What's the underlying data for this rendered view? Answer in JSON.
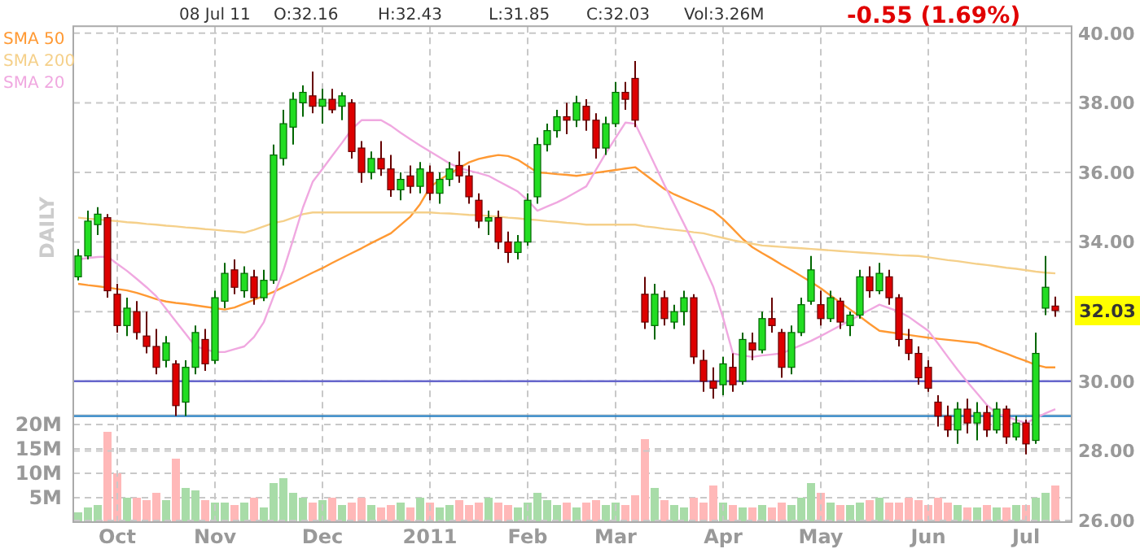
{
  "chart_data": [
    {
      "type": "candlestick",
      "ylabel": "DAILY",
      "legend": "top left",
      "grid": true,
      "categories": [
        null,
        null,
        null,
        null,
        "Oct",
        null,
        null,
        null,
        null,
        null,
        null,
        null,
        null,
        null,
        "Nov",
        null,
        null,
        null,
        null,
        null,
        null,
        null,
        null,
        null,
        null,
        "Dec",
        null,
        null,
        null,
        null,
        null,
        null,
        null,
        null,
        null,
        null,
        "2011",
        null,
        null,
        null,
        null,
        null,
        null,
        null,
        null,
        null,
        "Feb",
        null,
        null,
        null,
        null,
        null,
        null,
        null,
        null,
        "Mar",
        null,
        null,
        null,
        null,
        null,
        null,
        null,
        null,
        null,
        null,
        "Apr",
        null,
        null,
        null,
        null,
        null,
        null,
        null,
        null,
        null,
        "May",
        null,
        null,
        null,
        null,
        null,
        null,
        null,
        null,
        null,
        null,
        "Jun",
        null,
        null,
        null,
        null,
        null,
        null,
        null,
        null,
        null,
        "Jul",
        null,
        null,
        null
      ],
      "ohlc": [
        [
          33.0,
          33.8,
          32.9,
          33.6
        ],
        [
          33.6,
          34.9,
          33.5,
          34.6
        ],
        [
          34.5,
          35.0,
          34.2,
          34.8
        ],
        [
          34.7,
          34.8,
          32.4,
          32.6
        ],
        [
          32.5,
          32.8,
          31.4,
          31.6
        ],
        [
          31.6,
          32.4,
          31.3,
          32.1
        ],
        [
          32.0,
          32.3,
          31.2,
          31.4
        ],
        [
          31.3,
          32.0,
          30.8,
          31.0
        ],
        [
          31.0,
          31.5,
          30.2,
          30.4
        ],
        [
          30.6,
          31.3,
          30.4,
          31.1
        ],
        [
          30.5,
          30.6,
          29.0,
          29.3
        ],
        [
          29.4,
          30.6,
          29.0,
          30.4
        ],
        [
          30.4,
          31.6,
          30.2,
          31.4
        ],
        [
          31.2,
          31.5,
          30.3,
          30.5
        ],
        [
          30.6,
          32.6,
          30.5,
          32.4
        ],
        [
          32.3,
          33.4,
          32.1,
          33.1
        ],
        [
          33.2,
          33.5,
          32.5,
          32.7
        ],
        [
          32.6,
          33.3,
          32.4,
          33.1
        ],
        [
          33.0,
          33.2,
          32.2,
          32.4
        ],
        [
          32.4,
          33.2,
          32.3,
          32.9
        ],
        [
          32.9,
          36.8,
          32.8,
          36.5
        ],
        [
          36.4,
          37.8,
          36.2,
          37.4
        ],
        [
          37.3,
          38.3,
          36.8,
          38.1
        ],
        [
          38.0,
          38.5,
          37.6,
          38.3
        ],
        [
          38.2,
          38.9,
          37.7,
          37.9
        ],
        [
          37.9,
          38.4,
          37.4,
          38.1
        ],
        [
          38.1,
          38.4,
          37.7,
          37.8
        ],
        [
          37.9,
          38.3,
          37.5,
          38.2
        ],
        [
          38.0,
          38.1,
          36.4,
          36.6
        ],
        [
          36.7,
          36.9,
          35.7,
          36.0
        ],
        [
          36.0,
          36.6,
          35.8,
          36.4
        ],
        [
          36.4,
          36.9,
          35.9,
          36.1
        ],
        [
          36.1,
          36.5,
          35.3,
          35.5
        ],
        [
          35.5,
          36.0,
          35.2,
          35.8
        ],
        [
          35.9,
          36.2,
          35.4,
          35.6
        ],
        [
          35.6,
          36.3,
          35.4,
          36.1
        ],
        [
          36.0,
          36.2,
          35.2,
          35.4
        ],
        [
          35.4,
          36.0,
          35.1,
          35.8
        ],
        [
          35.8,
          36.3,
          35.6,
          36.1
        ],
        [
          36.2,
          36.6,
          35.7,
          35.9
        ],
        [
          35.9,
          36.2,
          35.1,
          35.3
        ],
        [
          35.2,
          35.4,
          34.4,
          34.6
        ],
        [
          34.6,
          34.9,
          34.2,
          34.7
        ],
        [
          34.7,
          34.9,
          33.8,
          34.0
        ],
        [
          34.0,
          34.3,
          33.4,
          33.7
        ],
        [
          33.7,
          34.2,
          33.5,
          34.0
        ],
        [
          34.0,
          35.4,
          33.9,
          35.2
        ],
        [
          35.3,
          37.0,
          35.1,
          36.8
        ],
        [
          36.8,
          37.4,
          36.6,
          37.2
        ],
        [
          37.2,
          37.8,
          37.0,
          37.6
        ],
        [
          37.6,
          38.0,
          37.1,
          37.5
        ],
        [
          37.5,
          38.2,
          37.3,
          38.0
        ],
        [
          37.9,
          38.1,
          37.2,
          37.5
        ],
        [
          37.5,
          37.7,
          36.4,
          36.7
        ],
        [
          36.7,
          37.6,
          36.5,
          37.4
        ],
        [
          37.4,
          38.6,
          37.3,
          38.3
        ],
        [
          38.3,
          38.6,
          37.8,
          38.1
        ],
        [
          38.7,
          39.2,
          37.3,
          37.5
        ],
        [
          32.5,
          33.0,
          31.5,
          31.7
        ],
        [
          31.6,
          32.8,
          31.2,
          32.5
        ],
        [
          32.4,
          32.6,
          31.6,
          31.8
        ],
        [
          31.7,
          32.2,
          31.5,
          32.0
        ],
        [
          32.0,
          32.6,
          31.6,
          32.4
        ],
        [
          32.4,
          32.5,
          30.5,
          30.7
        ],
        [
          30.6,
          30.9,
          29.7,
          30.0
        ],
        [
          30.0,
          30.4,
          29.5,
          29.8
        ],
        [
          29.9,
          30.7,
          29.6,
          30.5
        ],
        [
          30.4,
          30.8,
          29.7,
          29.9
        ],
        [
          30.0,
          31.4,
          29.9,
          31.2
        ],
        [
          31.1,
          31.4,
          30.6,
          30.9
        ],
        [
          30.9,
          32.0,
          30.8,
          31.8
        ],
        [
          31.8,
          32.4,
          31.4,
          31.6
        ],
        [
          31.4,
          31.5,
          30.1,
          30.4
        ],
        [
          30.4,
          31.6,
          30.2,
          31.4
        ],
        [
          31.4,
          32.4,
          31.3,
          32.2
        ],
        [
          32.3,
          33.6,
          32.2,
          33.2
        ],
        [
          32.2,
          32.6,
          31.6,
          31.8
        ],
        [
          31.8,
          32.6,
          31.7,
          32.4
        ],
        [
          32.3,
          32.4,
          31.5,
          31.7
        ],
        [
          31.6,
          32.0,
          31.3,
          31.9
        ],
        [
          31.9,
          33.2,
          31.8,
          33.0
        ],
        [
          33.0,
          33.3,
          32.4,
          32.6
        ],
        [
          32.6,
          33.4,
          32.5,
          33.1
        ],
        [
          33.0,
          33.2,
          32.2,
          32.4
        ],
        [
          32.4,
          32.5,
          31.0,
          31.2
        ],
        [
          31.2,
          31.5,
          30.6,
          30.8
        ],
        [
          30.8,
          31.0,
          29.9,
          30.1
        ],
        [
          30.4,
          30.6,
          29.7,
          29.8
        ],
        [
          29.4,
          29.6,
          28.7,
          29.0
        ],
        [
          29.0,
          29.3,
          28.4,
          28.6
        ],
        [
          28.6,
          29.4,
          28.2,
          29.2
        ],
        [
          29.2,
          29.5,
          28.5,
          28.8
        ],
        [
          28.8,
          29.4,
          28.3,
          29.1
        ],
        [
          29.1,
          29.3,
          28.4,
          28.6
        ],
        [
          28.6,
          29.4,
          28.5,
          29.2
        ],
        [
          29.2,
          29.3,
          28.2,
          28.4
        ],
        [
          28.4,
          29.0,
          28.3,
          28.8
        ],
        [
          28.8,
          28.9,
          27.9,
          28.2
        ],
        [
          28.3,
          31.4,
          28.2,
          30.8
        ],
        [
          32.1,
          33.6,
          31.9,
          32.7
        ],
        [
          32.16,
          32.43,
          31.85,
          32.03
        ]
      ],
      "series": [
        {
          "type": "line",
          "name": "SMA 50",
          "color": "#ff9933",
          "values": [
            32.8,
            32.76,
            32.73,
            32.69,
            32.65,
            32.61,
            32.54,
            32.45,
            32.36,
            32.29,
            32.25,
            32.22,
            32.18,
            32.14,
            32.1,
            32.06,
            32.12,
            32.23,
            32.34,
            32.45,
            32.57,
            32.71,
            32.84,
            32.98,
            33.12,
            33.25,
            33.4,
            33.54,
            33.68,
            33.82,
            33.97,
            34.11,
            34.25,
            34.49,
            34.73,
            35.09,
            35.57,
            35.79,
            35.96,
            36.13,
            36.29,
            36.39,
            36.45,
            36.5,
            36.47,
            36.36,
            36.18,
            36.0,
            35.98,
            35.95,
            35.93,
            35.9,
            35.94,
            35.99,
            36.03,
            36.07,
            36.11,
            36.15,
            35.94,
            35.73,
            35.52,
            35.37,
            35.25,
            35.13,
            35.01,
            34.89,
            34.66,
            34.38,
            34.09,
            33.85,
            33.68,
            33.52,
            33.35,
            33.19,
            33.02,
            32.85,
            32.67,
            32.46,
            32.26,
            32.06,
            31.86,
            31.65,
            31.45,
            31.41,
            31.37,
            31.33,
            31.29,
            31.25,
            31.22,
            31.19,
            31.16,
            31.13,
            31.1,
            31.0,
            30.89,
            30.79,
            30.68,
            30.58,
            30.47,
            30.4,
            30.4
          ]
        },
        {
          "type": "line",
          "name": "SMA 200",
          "color": "#f5d08a",
          "values": [
            34.7,
            34.67,
            34.65,
            34.62,
            34.6,
            34.57,
            34.55,
            34.52,
            34.5,
            34.47,
            34.45,
            34.42,
            34.4,
            34.37,
            34.35,
            34.32,
            34.3,
            34.27,
            34.35,
            34.45,
            34.55,
            34.6,
            34.7,
            34.8,
            34.85,
            34.85,
            34.85,
            34.85,
            34.85,
            34.85,
            34.85,
            34.85,
            34.85,
            34.85,
            34.85,
            34.85,
            34.85,
            34.83,
            34.82,
            34.8,
            34.78,
            34.77,
            34.75,
            34.73,
            34.7,
            34.68,
            34.65,
            34.63,
            34.6,
            34.58,
            34.55,
            34.53,
            34.5,
            34.5,
            34.5,
            34.5,
            34.5,
            34.5,
            34.45,
            34.42,
            34.38,
            34.35,
            34.32,
            34.28,
            34.25,
            34.18,
            34.12,
            34.05,
            34.0,
            33.95,
            33.9,
            33.88,
            33.86,
            33.84,
            33.82,
            33.8,
            33.78,
            33.76,
            33.74,
            33.72,
            33.7,
            33.68,
            33.66,
            33.64,
            33.62,
            33.61,
            33.6,
            33.56,
            33.52,
            33.48,
            33.45,
            33.41,
            33.37,
            33.34,
            33.3,
            33.26,
            33.23,
            33.19,
            33.15,
            33.12,
            33.1
          ]
        },
        {
          "type": "line",
          "name": "SMA 20",
          "color": "#f0a8e0",
          "values": [
            33.5,
            33.54,
            33.57,
            33.58,
            33.37,
            33.17,
            32.94,
            32.7,
            32.44,
            32.08,
            31.72,
            31.36,
            31.0,
            30.92,
            30.84,
            30.84,
            30.92,
            31.0,
            31.27,
            31.7,
            32.44,
            33.18,
            34.07,
            34.99,
            35.73,
            36.1,
            36.48,
            36.85,
            37.24,
            37.5,
            37.5,
            37.5,
            37.34,
            37.14,
            36.95,
            36.77,
            36.6,
            36.43,
            36.26,
            36.13,
            36.05,
            35.98,
            35.9,
            35.75,
            35.6,
            35.45,
            35.2,
            34.9,
            35.02,
            35.14,
            35.28,
            35.44,
            35.6,
            36.08,
            36.55,
            36.99,
            37.43,
            37.4,
            36.82,
            36.23,
            35.64,
            35.08,
            34.52,
            33.95,
            33.33,
            32.71,
            31.82,
            30.8,
            30.74,
            30.7,
            30.74,
            30.77,
            30.8,
            30.92,
            31.04,
            31.16,
            31.3,
            31.45,
            31.6,
            31.75,
            31.9,
            32.05,
            32.2,
            32.1,
            32.0,
            31.85,
            31.65,
            31.45,
            31.08,
            30.7,
            30.33,
            29.98,
            29.65,
            29.32,
            29.07,
            28.98,
            28.89,
            28.8,
            28.94,
            29.08,
            29.2
          ]
        }
      ],
      "ylim": [
        26,
        40.2
      ],
      "yticks": [
        {
          "value": 26,
          "label": "26.00"
        },
        {
          "value": 28,
          "label": "28.00"
        },
        {
          "value": 30,
          "label": "30.00"
        },
        {
          "value": 32,
          "label": null
        },
        {
          "value": 34,
          "label": "34.00"
        },
        {
          "value": 36,
          "label": "36.00"
        },
        {
          "value": 38,
          "label": "38.00"
        },
        {
          "value": 40,
          "label": "40.00"
        }
      ],
      "ref_lines": [
        {
          "axis": "y",
          "value": 30,
          "color": "#6666cc"
        },
        {
          "axis": "y",
          "value": 29,
          "color": "#2a82c4"
        }
      ],
      "annotations": [
        "08 Jul 11",
        "O:32.16",
        "H:32.43",
        "L:31.85",
        "C:32.03",
        "Vol:3.26M",
        "-0.55 (1.69%)",
        "32.03"
      ]
    },
    {
      "type": "bar",
      "grid": "y",
      "tick_labels": "y",
      "categories": [
        null,
        null,
        null,
        null,
        null,
        null,
        null,
        null,
        null,
        null,
        null,
        null,
        null,
        null,
        null,
        null,
        null,
        null,
        null,
        null,
        null,
        null,
        null,
        null,
        null,
        null,
        null,
        null,
        null,
        null,
        null,
        null,
        null,
        null,
        null,
        null,
        null,
        null,
        null,
        null,
        null,
        null,
        null,
        null,
        null,
        null,
        null,
        null,
        null,
        null,
        null,
        null,
        null,
        null,
        null,
        null,
        null,
        null,
        null,
        null,
        null,
        null,
        null,
        null,
        null,
        null,
        null,
        null,
        null,
        null,
        null,
        null,
        null,
        null,
        null,
        null,
        null,
        null,
        null,
        null,
        null,
        null,
        null,
        null,
        null,
        null,
        null,
        null,
        null,
        null,
        null,
        null,
        null,
        null,
        null,
        null,
        null,
        null,
        null,
        null,
        null
      ],
      "values": [
        2,
        3,
        3.5,
        18.5,
        10,
        5,
        5,
        4.5,
        6,
        4.5,
        13,
        7,
        6.5,
        4.5,
        4,
        4,
        3.5,
        4,
        5,
        3,
        8,
        9,
        6,
        5,
        4,
        4.5,
        5,
        3.5,
        4,
        5,
        3.5,
        3,
        3.5,
        4,
        3,
        5,
        4,
        3,
        3.5,
        4.5,
        3.5,
        4,
        5,
        4,
        3.5,
        3,
        4,
        6,
        4.5,
        3.5,
        4,
        3,
        4,
        4.5,
        3.5,
        4,
        3.5,
        5.5,
        17,
        7,
        4.5,
        3.5,
        3,
        5,
        4,
        7.5,
        4,
        3.5,
        3,
        3,
        3.5,
        3,
        4,
        3.5,
        5,
        8,
        6,
        4,
        3.5,
        3.5,
        4,
        4.5,
        5,
        4,
        4,
        5,
        4.5,
        3.5,
        5,
        4,
        3.5,
        3,
        3,
        3.5,
        3,
        3,
        3.5,
        3.5,
        5,
        6,
        7.5
      ],
      "colors": [
        "#a8dca8",
        "#a8dca8",
        "#a8dca8",
        "#ffb8b8",
        "#ffb8b8",
        "#a8dca8",
        "#ffb8b8",
        "#ffb8b8",
        "#ffb8b8",
        "#a8dca8",
        "#ffb8b8",
        "#a8dca8",
        "#a8dca8",
        "#ffb8b8",
        "#a8dca8",
        "#a8dca8",
        "#ffb8b8",
        "#a8dca8",
        "#ffb8b8",
        "#a8dca8",
        "#a8dca8",
        "#a8dca8",
        "#a8dca8",
        "#a8dca8",
        "#ffb8b8",
        "#a8dca8",
        "#ffb8b8",
        "#a8dca8",
        "#ffb8b8",
        "#ffb8b8",
        "#a8dca8",
        "#ffb8b8",
        "#ffb8b8",
        "#a8dca8",
        "#ffb8b8",
        "#a8dca8",
        "#ffb8b8",
        "#a8dca8",
        "#a8dca8",
        "#ffb8b8",
        "#ffb8b8",
        "#ffb8b8",
        "#a8dca8",
        "#ffb8b8",
        "#ffb8b8",
        "#a8dca8",
        "#a8dca8",
        "#a8dca8",
        "#a8dca8",
        "#a8dca8",
        "#ffb8b8",
        "#a8dca8",
        "#ffb8b8",
        "#ffb8b8",
        "#a8dca8",
        "#a8dca8",
        "#ffb8b8",
        "#ffb8b8",
        "#ffb8b8",
        "#a8dca8",
        "#ffb8b8",
        "#a8dca8",
        "#a8dca8",
        "#ffb8b8",
        "#ffb8b8",
        "#ffb8b8",
        "#a8dca8",
        "#ffb8b8",
        "#a8dca8",
        "#ffb8b8",
        "#a8dca8",
        "#ffb8b8",
        "#ffb8b8",
        "#a8dca8",
        "#a8dca8",
        "#a8dca8",
        "#ffb8b8",
        "#a8dca8",
        "#ffb8b8",
        "#a8dca8",
        "#a8dca8",
        "#ffb8b8",
        "#a8dca8",
        "#ffb8b8",
        "#ffb8b8",
        "#ffb8b8",
        "#ffb8b8",
        "#ffb8b8",
        "#ffb8b8",
        "#ffb8b8",
        "#a8dca8",
        "#ffb8b8",
        "#a8dca8",
        "#ffb8b8",
        "#a8dca8",
        "#ffb8b8",
        "#a8dca8",
        "#ffb8b8",
        "#a8dca8",
        "#a8dca8",
        "#ffb8b8"
      ],
      "ylim": [
        0,
        22
      ],
      "yticks": [
        {
          "value": 5,
          "label": "5M"
        },
        {
          "value": 10,
          "label": "10M"
        },
        {
          "value": 15,
          "label": "15M"
        },
        {
          "value": 20,
          "label": "20M"
        }
      ]
    }
  ]
}
